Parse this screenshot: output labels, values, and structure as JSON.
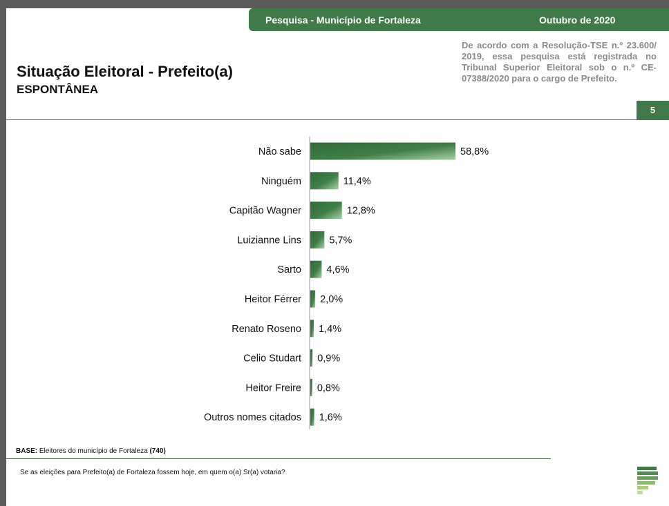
{
  "header": {
    "survey_title": "Pesquisa - Município de Fortaleza",
    "date": "Outubro de 2020"
  },
  "title": "Situação Eleitoral - Prefeito(a)",
  "subtitle": "ESPONTÂNEA",
  "registration_notice": "De acordo com a Resolução-TSE n.º 23.600/ 2019, essa pesquisa está registrada no Tribunal Superior Eleitoral sob o n.º CE-07388/2020 para o cargo de Prefeito.",
  "page_number": "5",
  "base": {
    "label": "BASE:",
    "text": " Eleitores do município de Fortaleza ",
    "count": "(740)"
  },
  "question": "Se as eleições para Prefeito(a) de Fortaleza fossem hoje, em quem o(a) Sr(a) votaria?",
  "colors": {
    "brand_green": "#3f7a48",
    "bar_dark": "#2f6b3a",
    "bar_light": "#a8cfa6"
  },
  "chart_data": {
    "type": "bar",
    "orientation": "horizontal",
    "categories": [
      "Não sabe",
      "Ninguém",
      "Capitão Wagner",
      "Luizianne Lins",
      "Sarto",
      "Heitor Férrer",
      "Renato Roseno",
      "Celio Studart",
      "Heitor Freire",
      "Outros nomes citados"
    ],
    "values": [
      58.8,
      11.4,
      12.8,
      5.7,
      4.6,
      2.0,
      1.4,
      0.9,
      0.8,
      1.6
    ],
    "value_labels": [
      "58,8%",
      "11,4%",
      "12,8%",
      "5,7%",
      "4,6%",
      "2,0%",
      "1,4%",
      "0,9%",
      "0,8%",
      "1,6%"
    ],
    "title": "",
    "xlabel": "",
    "ylabel": "",
    "xlim": [
      0,
      100
    ],
    "grid": false,
    "legend": "none"
  }
}
